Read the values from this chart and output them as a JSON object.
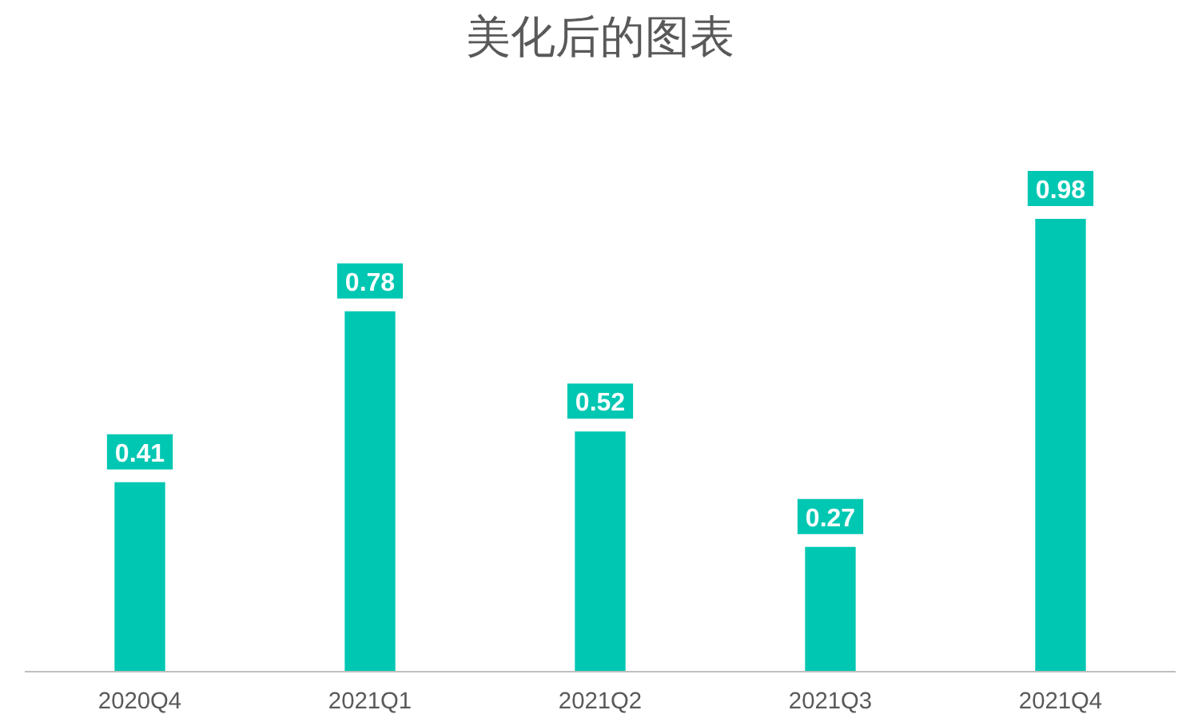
{
  "chart_data": {
    "type": "bar",
    "title": "美化后的图表",
    "categories": [
      "2020Q4",
      "2021Q1",
      "2021Q2",
      "2021Q3",
      "2021Q4"
    ],
    "values": [
      0.41,
      0.78,
      0.52,
      0.27,
      0.98
    ],
    "color": "#00c7b2",
    "data_labels": true
  }
}
